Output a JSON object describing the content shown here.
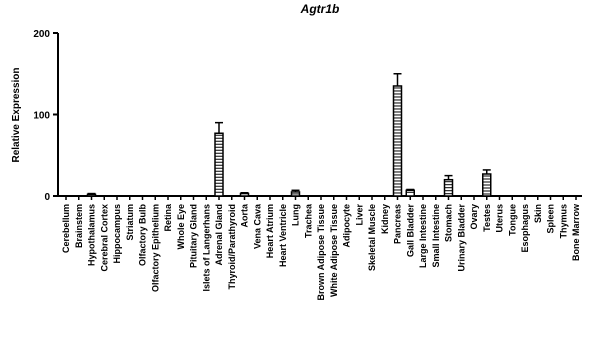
{
  "chart_data": {
    "type": "bar",
    "title": "Agtr1b",
    "xlabel": "",
    "ylabel": "Relative Expression",
    "ylim": [
      0,
      200
    ],
    "yticks": [
      "0",
      "100",
      "200"
    ],
    "grid": false,
    "categories": [
      "Cerebellum",
      "Brainstem",
      "Hypothalamus",
      "Cerebral Cortex",
      "Hippocampus",
      "Striatum",
      "Olfactory Bulb",
      "Olfactory Epithelium",
      "Retina",
      "Whole Eye",
      "Pituitary Gland",
      "Islets of Langerhans",
      "Adrenal Gland",
      "Thyroid/Parathyroid",
      "Aorta",
      "Vena Cava",
      "Heart Atrium",
      "Heart Ventricle",
      "Lung",
      "Trachea",
      "Brown Adipose Tissue",
      "White Adipose Tissue",
      "Adipocyte",
      "Liver",
      "Skeletal Muscle",
      "Kidney",
      "Pancreas",
      "Gall Bladder",
      "Large Intestine",
      "Small Intestine",
      "Stomach",
      "Urinary Bladder",
      "Ovary",
      "Testes",
      "Uterus",
      "Tongue",
      "Esophagus",
      "Skin",
      "Spleen",
      "Thymus",
      "Bone Marrow"
    ],
    "values": [
      0,
      0,
      2,
      0,
      0,
      0,
      0,
      0,
      0,
      0,
      0,
      0,
      77,
      0,
      3,
      0,
      0,
      0,
      5,
      0,
      0,
      0,
      0,
      0,
      0,
      0,
      135,
      7,
      0,
      0,
      20,
      0,
      0,
      27,
      0,
      0,
      0,
      0,
      0,
      0,
      0
    ],
    "errors": [
      0,
      0,
      1,
      0,
      0,
      0,
      0,
      0,
      0,
      0,
      0,
      0,
      13,
      0,
      1,
      0,
      0,
      0,
      2,
      0,
      0,
      0,
      0,
      0,
      0,
      0,
      15,
      1,
      0,
      0,
      5,
      0,
      0,
      5,
      0,
      0,
      0,
      0,
      0,
      0,
      0
    ],
    "bar_color": "#000000",
    "bar_fill": "#ffffff"
  }
}
